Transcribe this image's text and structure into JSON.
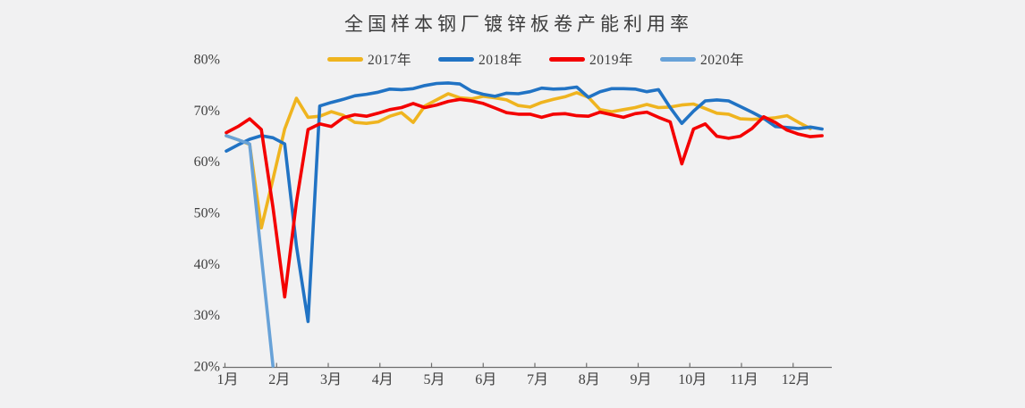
{
  "chart_data": {
    "type": "line",
    "title": "全国样本钢厂镀锌板卷产能利用率",
    "legend_position": "top",
    "grid": false,
    "y_axis": {
      "min": 20,
      "max": 80,
      "tick_values": [
        80,
        70,
        60,
        50,
        40,
        30,
        20
      ],
      "tick_labels": [
        "80%",
        "70%",
        "60%",
        "50%",
        "40%",
        "30%",
        "20%"
      ]
    },
    "x_axis": {
      "unit": "week",
      "tick_labels": [
        "1月",
        "2月",
        "3月",
        "4月",
        "5月",
        "6月",
        "7月",
        "8月",
        "9月",
        "10月",
        "11月",
        "12月"
      ]
    },
    "series": [
      {
        "name": "2017年",
        "color": "#EFB41F",
        "values": [
          65.0,
          64.2,
          63.3,
          47.0,
          56.5,
          66.3,
          72.3,
          68.6,
          68.8,
          69.7,
          69.0,
          67.6,
          67.4,
          67.7,
          68.8,
          69.5,
          67.6,
          70.8,
          72.0,
          73.2,
          72.4,
          72.2,
          72.7,
          72.4,
          72.0,
          70.9,
          70.6,
          71.5,
          72.1,
          72.6,
          73.4,
          72.5,
          70.1,
          69.7,
          70.1,
          70.5,
          71.1,
          70.5,
          70.6,
          71.0,
          71.2,
          70.3,
          69.4,
          69.2,
          68.3,
          68.2,
          68.3,
          68.5,
          68.9,
          67.6,
          66.4
        ]
      },
      {
        "name": "2018年",
        "color": "#2173C4",
        "values": [
          62.0,
          63.2,
          64.3,
          65.0,
          64.6,
          63.4,
          43.5,
          28.7,
          70.8,
          71.5,
          72.1,
          72.8,
          73.1,
          73.5,
          74.1,
          74.0,
          74.2,
          74.8,
          75.2,
          75.3,
          75.1,
          73.7,
          73.1,
          72.7,
          73.3,
          73.2,
          73.6,
          74.3,
          74.1,
          74.2,
          74.5,
          72.5,
          73.6,
          74.2,
          74.2,
          74.1,
          73.6,
          74.0,
          70.5,
          67.4,
          69.8,
          71.8,
          72.0,
          71.8,
          70.7,
          69.6,
          68.4,
          66.8,
          66.6,
          66.4,
          66.7,
          66.3
        ]
      },
      {
        "name": "2019年",
        "color": "#F40000",
        "values": [
          65.6,
          66.8,
          68.3,
          66.2,
          51.0,
          33.5,
          52.0,
          66.2,
          67.3,
          66.8,
          68.5,
          69.1,
          68.8,
          69.4,
          70.1,
          70.5,
          71.3,
          70.5,
          71.0,
          71.7,
          72.1,
          71.8,
          71.3,
          70.4,
          69.5,
          69.2,
          69.2,
          68.6,
          69.2,
          69.3,
          68.9,
          68.8,
          69.6,
          69.1,
          68.6,
          69.3,
          69.6,
          68.6,
          67.7,
          59.5,
          66.3,
          67.3,
          64.9,
          64.5,
          64.9,
          66.4,
          68.7,
          67.6,
          66.1,
          65.3,
          64.8,
          65.0
        ]
      },
      {
        "name": "2020年",
        "color": "#68A2D8",
        "values": [
          65.0,
          64.2,
          63.4,
          41.5,
          20.0
        ]
      }
    ]
  }
}
